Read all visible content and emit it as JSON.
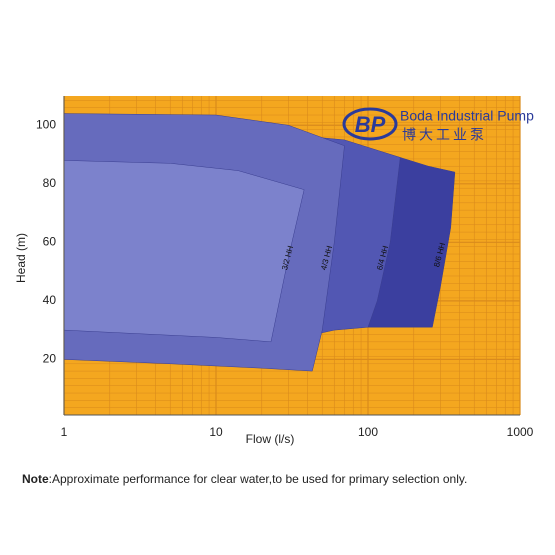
{
  "chart_data": {
    "type": "region",
    "xlabel": "Flow (l/s)",
    "ylabel": "Head (m)",
    "xscale": "log",
    "xlim": [
      1,
      1000
    ],
    "xticks": [
      1,
      10,
      100,
      1000
    ],
    "ylim": [
      1,
      110
    ],
    "yticks": [
      20,
      40,
      60,
      80,
      100
    ],
    "grid": true,
    "background": "#f4a71f",
    "grid_color": "#d98a1c",
    "series": [
      {
        "name": "8/6 HH",
        "color": "#3b3f9f",
        "x": [
          100,
          163,
          250,
          373,
          350,
          300,
          265,
          160,
          100
        ],
        "y": [
          91,
          89,
          86,
          84,
          65,
          45,
          31,
          31,
          31
        ]
      },
      {
        "name": "6/4 HH",
        "color": "#5257b3",
        "x": [
          1,
          70,
          163,
          140,
          115,
          100,
          60,
          40,
          1
        ],
        "y": [
          104,
          95,
          89,
          60,
          40,
          31,
          30,
          28,
          22
        ]
      },
      {
        "name": "4/3 HH",
        "color": "#666bbd",
        "x": [
          1,
          10,
          30,
          70,
          60,
          50,
          43,
          20,
          5,
          1
        ],
        "y": [
          104,
          103.5,
          100,
          93,
          60,
          30,
          16,
          17,
          18.5,
          20
        ]
      },
      {
        "name": "3/2 HH",
        "color": "#7c82cc",
        "x": [
          1,
          5,
          14,
          38,
          30,
          23,
          10,
          1
        ],
        "y": [
          88,
          87,
          84.5,
          78,
          55,
          26,
          27.5,
          30
        ]
      }
    ]
  },
  "logo": {
    "mark": "BP",
    "name": "Boda Industrial Pump",
    "chinese": "博大工业泵"
  },
  "note": {
    "label": "Note",
    "text": ":Approximate performance for clear water,to be used for primary selection only."
  }
}
